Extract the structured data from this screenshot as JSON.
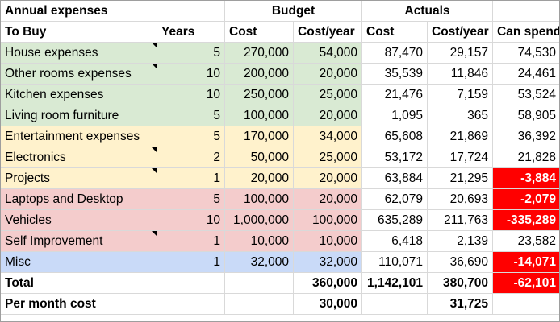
{
  "header1": {
    "title": "Annual expenses",
    "budget": "Budget",
    "actuals": "Actuals"
  },
  "header2": {
    "to_buy": "To Buy",
    "years": "Years",
    "cost": "Cost",
    "cost_year": "Cost/year",
    "act_cost": "Cost",
    "act_cost_year": "Cost/year",
    "can_spend": "Can spend"
  },
  "rows": [
    {
      "name": "House expenses",
      "years": "5",
      "cost": "270,000",
      "cost_year": "54,000",
      "act_cost": "87,470",
      "act_cost_year": "29,157",
      "can_spend": "74,530"
    },
    {
      "name": "Other rooms expenses",
      "years": "10",
      "cost": "200,000",
      "cost_year": "20,000",
      "act_cost": "35,539",
      "act_cost_year": "11,846",
      "can_spend": "24,461"
    },
    {
      "name": "Kitchen expenses",
      "years": "10",
      "cost": "250,000",
      "cost_year": "25,000",
      "act_cost": "21,476",
      "act_cost_year": "7,159",
      "can_spend": "53,524"
    },
    {
      "name": "Living room furniture",
      "years": "5",
      "cost": "100,000",
      "cost_year": "20,000",
      "act_cost": "1,095",
      "act_cost_year": "365",
      "can_spend": "58,905"
    },
    {
      "name": "Entertainment expenses",
      "years": "5",
      "cost": "170,000",
      "cost_year": "34,000",
      "act_cost": "65,608",
      "act_cost_year": "21,869",
      "can_spend": "36,392"
    },
    {
      "name": "Electronics",
      "years": "2",
      "cost": "50,000",
      "cost_year": "25,000",
      "act_cost": "53,172",
      "act_cost_year": "17,724",
      "can_spend": "21,828"
    },
    {
      "name": "Projects",
      "years": "1",
      "cost": "20,000",
      "cost_year": "20,000",
      "act_cost": "63,884",
      "act_cost_year": "21,295",
      "can_spend": "-3,884"
    },
    {
      "name": "Laptops and Desktop",
      "years": "5",
      "cost": "100,000",
      "cost_year": "20,000",
      "act_cost": "62,079",
      "act_cost_year": "20,693",
      "can_spend": "-2,079"
    },
    {
      "name": "Vehicles",
      "years": "10",
      "cost": "1,000,000",
      "cost_year": "100,000",
      "act_cost": "635,289",
      "act_cost_year": "211,763",
      "can_spend": "-335,289"
    },
    {
      "name": "Self Improvement",
      "years": "1",
      "cost": "10,000",
      "cost_year": "10,000",
      "act_cost": "6,418",
      "act_cost_year": "2,139",
      "can_spend": "23,582"
    },
    {
      "name": "Misc",
      "years": "1",
      "cost": "32,000",
      "cost_year": "32,000",
      "act_cost": "110,071",
      "act_cost_year": "36,690",
      "can_spend": "-14,071"
    }
  ],
  "total": {
    "label": "Total",
    "cost_year": "360,000",
    "act_cost": "1,142,101",
    "act_cost_year": "380,700",
    "can_spend": "-62,101"
  },
  "per_month": {
    "label": "Per month cost",
    "cost_year": "30,000",
    "act_cost_year": "31,725"
  },
  "colors": {
    "green": "#d9ead3",
    "yellow": "#fff2cc",
    "red": "#f4cccc",
    "blue": "#c9daf8",
    "negative": "#ff0000"
  }
}
